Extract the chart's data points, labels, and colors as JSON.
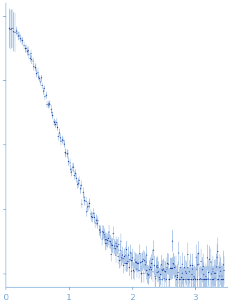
{
  "title": "",
  "xlabel": "",
  "ylabel": "",
  "xlim": [
    0,
    3.5
  ],
  "ylim": [
    -0.05,
    1.05
  ],
  "x_ticks": [
    0,
    1,
    2,
    3
  ],
  "background_color": "#ffffff",
  "axis_color": "#7dadd9",
  "data_color": "#1a3fa0",
  "error_color": "#a8c4e8",
  "spine_color": "#7dadd9",
  "tick_color": "#7dadd9",
  "tick_label_color": "#7dadd9",
  "figsize": [
    3.3,
    4.37
  ],
  "dpi": 100
}
